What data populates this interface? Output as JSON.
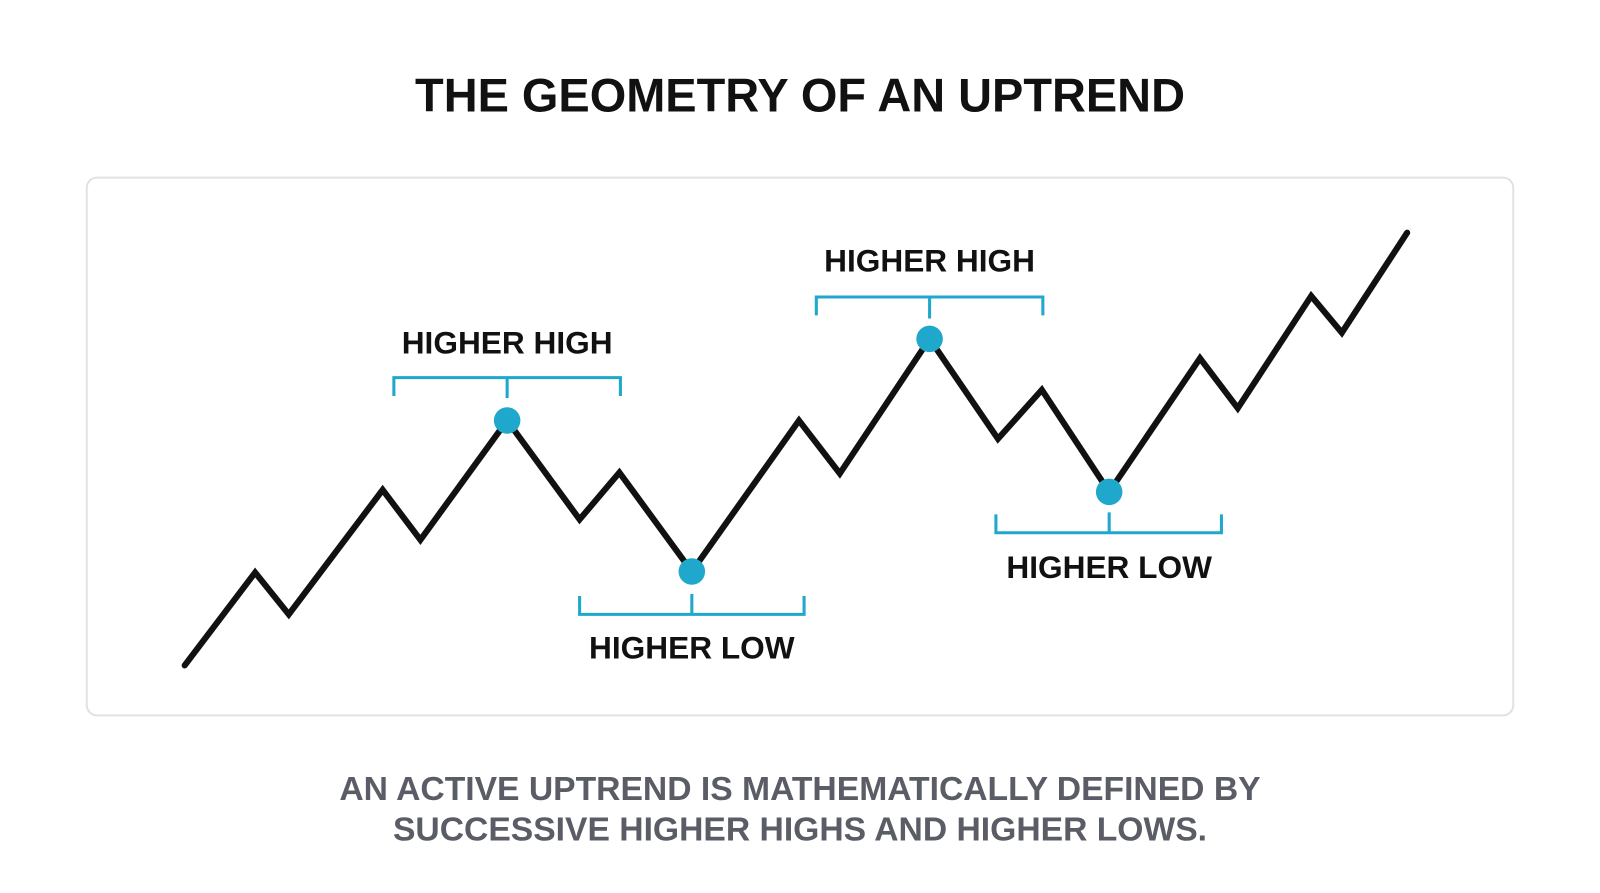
{
  "title": "THE GEOMETRY OF AN UPTREND",
  "labels": [
    "HIGHER HIGH",
    "HIGHER LOW",
    "HIGHER HIGH",
    "HIGHER LOW"
  ],
  "caption": {
    "lines": [
      "AN ACTIVE UPTREND IS MATHEMATICALLY DEFINED BY",
      "SUCCESSIVE HIGHER HIGHS AND HIGHER LOWS."
    ]
  }
}
